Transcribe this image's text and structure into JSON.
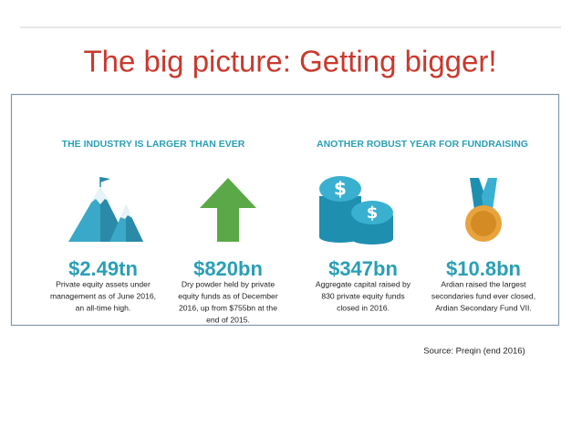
{
  "title": "The big picture: Getting bigger!",
  "sections": [
    {
      "heading": "THE INDUSTRY IS LARGER THAN EVER",
      "stats": [
        {
          "value": "$2.49tn",
          "description": [
            "Private equity assets under",
            "management as of June 2016,",
            "an all-time high."
          ]
        },
        {
          "value": "$820bn",
          "description": [
            "Dry powder held by private",
            "equity funds as of December",
            "2016, up from $755bn at the",
            "end of 2015."
          ]
        }
      ]
    },
    {
      "heading": "ANOTHER ROBUST YEAR FOR FUNDRAISING",
      "stats": [
        {
          "value": "$347bn",
          "description": [
            "Aggregate capital raised by",
            "830 private equity funds",
            "closed in 2016."
          ]
        },
        {
          "value": "$10.8bn",
          "description": [
            "Ardian raised the largest",
            "secondaries fund ever closed,",
            "Ardian Secondary Fund VII."
          ]
        }
      ]
    }
  ],
  "source": "Source: Preqin (end 2016)"
}
